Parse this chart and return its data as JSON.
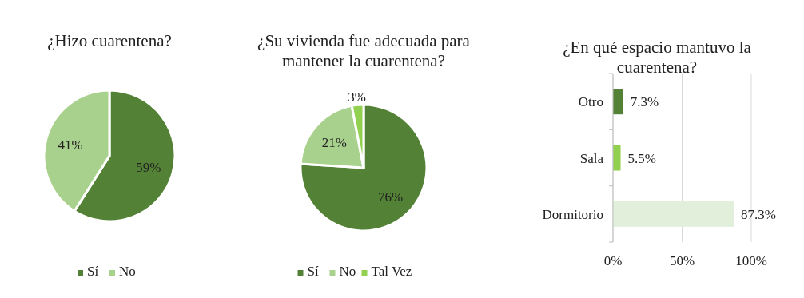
{
  "chart_data": [
    {
      "type": "pie",
      "title": "¿Hizo cuarentena?",
      "categories": [
        "Sí",
        "No"
      ],
      "values": [
        59,
        41
      ],
      "colors": [
        "#538135",
        "#a9d18e"
      ],
      "value_labels": [
        "59%",
        "41%"
      ],
      "legend": "bottom"
    },
    {
      "type": "pie",
      "title": "¿Su vivienda fue adecuada para mantener la cuarentena?",
      "categories": [
        "Sí",
        "No",
        "Tal Vez"
      ],
      "values": [
        76,
        21,
        3
      ],
      "colors": [
        "#538135",
        "#a9d18e",
        "#92d050"
      ],
      "value_labels": [
        "76%",
        "21%",
        "3%"
      ],
      "legend": "bottom"
    },
    {
      "type": "bar",
      "orientation": "horizontal",
      "title": "¿En qué espacio mantuvo la cuarentena?",
      "categories": [
        "Otro",
        "Sala",
        "Dormitorio"
      ],
      "values": [
        7.3,
        5.5,
        87.3
      ],
      "colors": [
        "#538135",
        "#92d050",
        "#e2efda"
      ],
      "value_labels": [
        "7.3%",
        "5.5%",
        "87.3%"
      ],
      "xlim": [
        0,
        100
      ],
      "xticks": [
        {
          "value": 0,
          "label": "0%"
        },
        {
          "value": 50,
          "label": "50%"
        },
        {
          "value": 100,
          "label": "100%"
        }
      ],
      "grid": "x"
    }
  ]
}
